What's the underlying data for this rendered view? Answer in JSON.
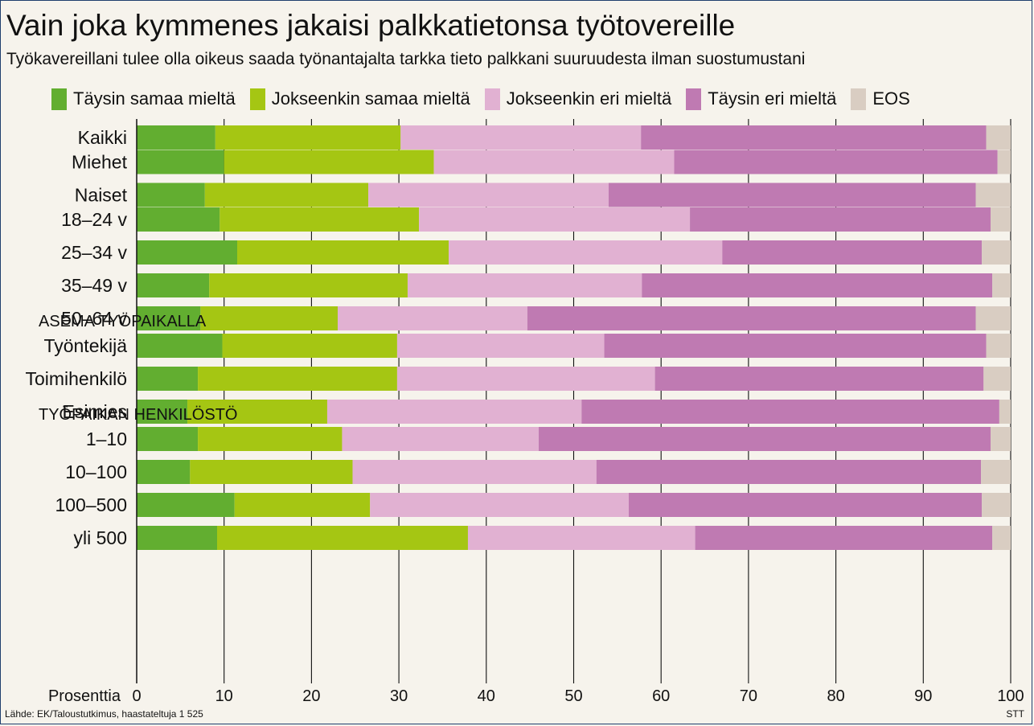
{
  "header": {
    "title": "Vain joka kymmenes jakaisi palkkatietonsa työtovereille",
    "subtitle": "Työkavereillani tulee olla oikeus saada työnantajalta tarkka tieto palkkani suuruudesta ilman suostumustani"
  },
  "legend": [
    {
      "label": "Täysin samaa mieltä",
      "color": "#62ae30"
    },
    {
      "label": "Jokseenkin samaa mieltä",
      "color": "#a5c613"
    },
    {
      "label": "Jokseenkin eri mieltä",
      "color": "#e1b1d2"
    },
    {
      "label": "Täysin eri mieltä",
      "color": "#bf7ab2"
    },
    {
      "label": "EOS",
      "color": "#d9cdc2"
    }
  ],
  "footer": {
    "source": "Lähde: EK/Taloustutkimus, haastateltuja 1 525",
    "credit": "STT"
  },
  "chart_data": {
    "type": "bar",
    "orientation": "horizontal",
    "stacked": true,
    "xlabel": "Prosenttia",
    "xlim": [
      0,
      100
    ],
    "xticks": [
      0,
      10,
      20,
      30,
      40,
      50,
      60,
      70,
      80,
      90,
      100
    ],
    "grid": true,
    "legend_position": "top",
    "series": [
      {
        "name": "Täysin samaa mieltä",
        "color": "#62ae30"
      },
      {
        "name": "Jokseenkin samaa mieltä",
        "color": "#a5c613"
      },
      {
        "name": "Jokseenkin eri mieltä",
        "color": "#e1b1d2"
      },
      {
        "name": "Täysin eri mieltä",
        "color": "#bf7ab2"
      },
      {
        "name": "EOS",
        "color": "#d9cdc2"
      }
    ],
    "groups": [
      {
        "heading": "",
        "categories": [
          {
            "label": "Kaikki",
            "values": [
              9.0,
              21.2,
              27.5,
              39.5,
              2.8
            ]
          }
        ]
      },
      {
        "heading": "",
        "categories": [
          {
            "label": "Miehet",
            "values": [
              10.0,
              24.0,
              27.5,
              37.0,
              1.5
            ]
          },
          {
            "label": "Naiset",
            "values": [
              7.8,
              18.7,
              27.5,
              42.0,
              4.0
            ]
          }
        ]
      },
      {
        "heading": "",
        "categories": [
          {
            "label": "18–24 v",
            "values": [
              9.5,
              22.8,
              31.0,
              34.4,
              2.3
            ]
          },
          {
            "label": "25–34 v",
            "values": [
              11.5,
              24.2,
              31.3,
              29.7,
              3.3
            ]
          },
          {
            "label": "35–49 v",
            "values": [
              8.3,
              22.7,
              26.8,
              40.1,
              2.1
            ]
          },
          {
            "label": "50–64 v",
            "values": [
              7.3,
              15.7,
              21.7,
              51.3,
              4.0
            ]
          }
        ]
      },
      {
        "heading": "ASEMA TYÖPAIKALLA",
        "categories": [
          {
            "label": "Työntekijä",
            "values": [
              9.8,
              20.0,
              23.7,
              43.7,
              2.8
            ]
          },
          {
            "label": "Toimihenkilö",
            "values": [
              7.0,
              22.8,
              29.5,
              37.6,
              3.1
            ]
          },
          {
            "label": "Esimies",
            "values": [
              5.8,
              16.0,
              29.1,
              47.8,
              1.3
            ]
          }
        ]
      },
      {
        "heading": "TYÖPAIKAN HENKILÖSTÖ",
        "categories": [
          {
            "label": "1–10",
            "values": [
              7.0,
              16.5,
              22.5,
              51.7,
              2.3
            ]
          },
          {
            "label": "10–100",
            "values": [
              6.1,
              18.6,
              27.9,
              44.0,
              3.4
            ]
          },
          {
            "label": "100–500",
            "values": [
              11.2,
              15.5,
              29.6,
              40.4,
              3.3
            ]
          },
          {
            "label": "yli 500",
            "values": [
              9.2,
              28.7,
              26.0,
              34.0,
              2.1
            ]
          }
        ]
      }
    ]
  }
}
